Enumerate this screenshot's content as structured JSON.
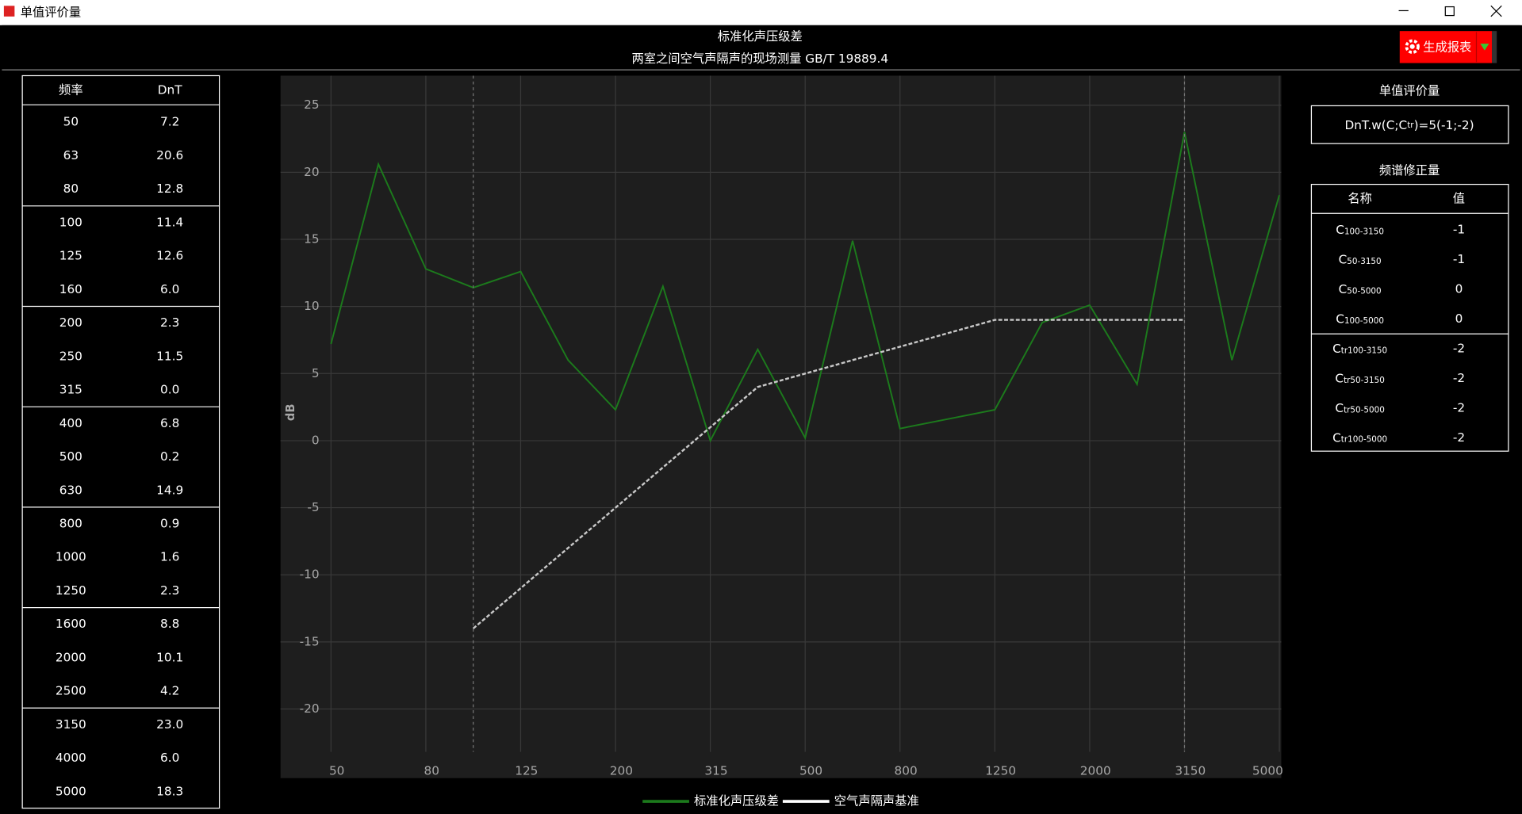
{
  "window": {
    "title": "单值评价量"
  },
  "button": {
    "label": "生成报表"
  },
  "frequency_table": {
    "headers": [
      "频率",
      "DnT"
    ],
    "rows": [
      [
        "50",
        "7.2"
      ],
      [
        "63",
        "20.6"
      ],
      [
        "80",
        "12.8"
      ],
      [
        "100",
        "11.4"
      ],
      [
        "125",
        "12.6"
      ],
      [
        "160",
        "6.0"
      ],
      [
        "200",
        "2.3"
      ],
      [
        "250",
        "11.5"
      ],
      [
        "315",
        "0.0"
      ],
      [
        "400",
        "6.8"
      ],
      [
        "500",
        "0.2"
      ],
      [
        "630",
        "14.9"
      ],
      [
        "800",
        "0.9"
      ],
      [
        "1000",
        "1.6"
      ],
      [
        "1250",
        "2.3"
      ],
      [
        "1600",
        "8.8"
      ],
      [
        "2000",
        "10.1"
      ],
      [
        "2500",
        "4.2"
      ],
      [
        "3150",
        "23.0"
      ],
      [
        "4000",
        "6.0"
      ],
      [
        "5000",
        "18.3"
      ]
    ]
  },
  "rating": {
    "title": "单值评价量",
    "expression": [
      {
        "text": "DnT.w(C;C"
      },
      {
        "text": "tr",
        "subscript": true
      },
      {
        "text": ")=5(-1;-2)"
      }
    ]
  },
  "corrections": {
    "title": "频谱修正量",
    "headers": [
      "名称",
      "值"
    ],
    "rows": [
      {
        "symbol": "C",
        "subscript": "100-3150",
        "value": -1
      },
      {
        "symbol": "C",
        "subscript": "50-3150",
        "value": -1
      },
      {
        "symbol": "C",
        "subscript": "50-5000",
        "value": 0
      },
      {
        "symbol": "C",
        "subscript": "100-5000",
        "value": 0
      },
      {
        "symbol": "C",
        "subscript": "tr100-3150",
        "value": -2
      },
      {
        "symbol": "C",
        "subscript": "tr50-3150",
        "value": -2
      },
      {
        "symbol": "C",
        "subscript": "tr50-5000",
        "value": -2
      },
      {
        "symbol": "C",
        "subscript": "tr100-5000",
        "value": -2
      }
    ]
  },
  "chart_data": {
    "type": "line",
    "title": "标准化声压级差",
    "subtitle": "两室之间空气声隔声的现场测量 GB/T 19889.4",
    "y_label": "dB",
    "categories": [
      "50",
      null,
      "80",
      null,
      "125",
      null,
      "200",
      null,
      "315",
      null,
      "500",
      null,
      "800",
      null,
      "1250",
      null,
      "2000",
      null,
      "3150",
      null,
      "5000"
    ],
    "series": [
      {
        "name": "标准化声压级差",
        "color": "#1c7a1c",
        "values": [
          7.2,
          20.6,
          12.8,
          11.4,
          12.6,
          6.0,
          2.3,
          11.5,
          0.0,
          6.8,
          0.2,
          14.9,
          0.9,
          1.6,
          2.3,
          8.8,
          10.1,
          4.2,
          23.0,
          6.0,
          18.3
        ]
      },
      {
        "name": "空气声隔声基准",
        "color": "#c8c8c8",
        "dashed": true,
        "values": [
          null,
          null,
          null,
          -14,
          -11,
          -8,
          -5,
          -2,
          1,
          4,
          5,
          6,
          7,
          8,
          9,
          9,
          9,
          9,
          9,
          null,
          null
        ]
      }
    ],
    "ylim": [
      -23.2,
      27.2
    ],
    "yticks": [
      -20,
      -15,
      -10,
      -5,
      0,
      5,
      10,
      15,
      20,
      25
    ],
    "grid": true
  }
}
